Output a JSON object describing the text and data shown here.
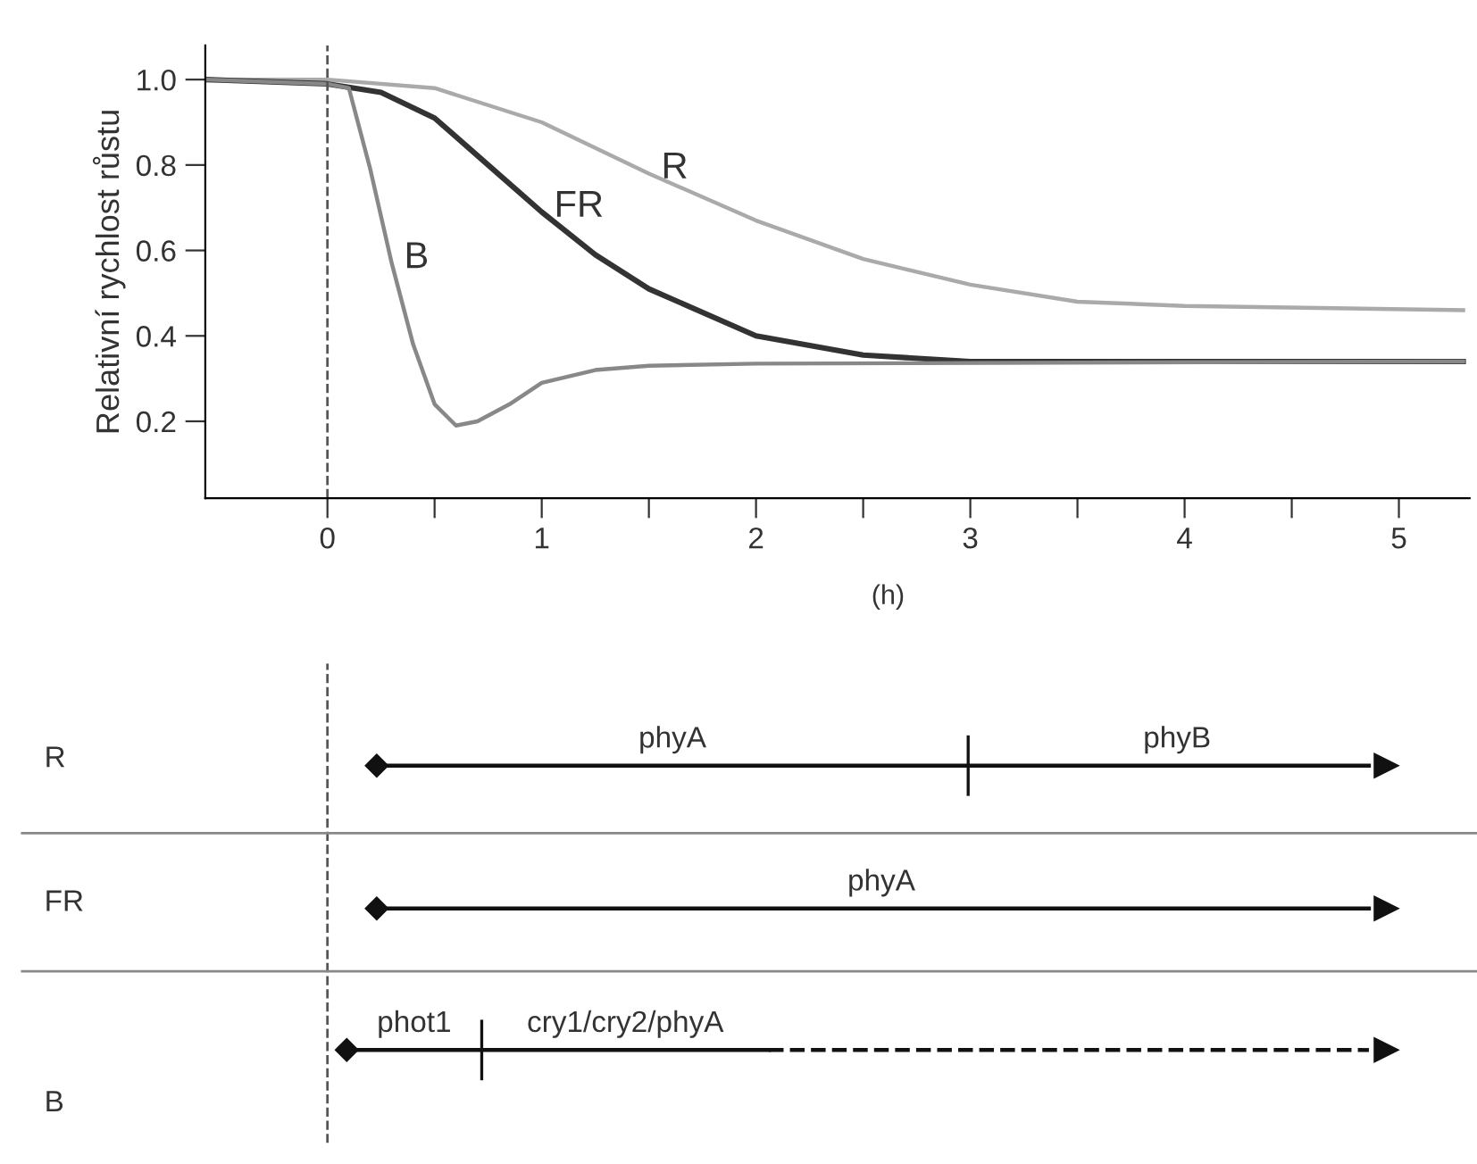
{
  "chart_data": [
    {
      "type": "line",
      "xlabel": "(h)",
      "ylabel": "Relativní rychlost růstu",
      "xlim": [
        -0.57,
        5.33
      ],
      "ylim": [
        0.02,
        1.08
      ],
      "xticks": [
        0,
        {
          "value": 0.5,
          "label": null
        },
        1,
        {
          "value": 1.5,
          "label": null
        },
        2,
        {
          "value": 2.5,
          "label": null
        },
        3,
        {
          "value": 3.5,
          "label": null
        },
        4,
        {
          "value": 4.5,
          "label": null
        },
        5
      ],
      "yticks": [
        0.2,
        0.4,
        0.6,
        0.8,
        {
          "value": 1,
          "label": "1.0"
        }
      ],
      "grid": false,
      "legend": false,
      "marker": "none",
      "line_style": "solid",
      "ref_lines": [
        {
          "axis": "x",
          "value": 0,
          "line_style": "dashed",
          "color": "#555555"
        }
      ],
      "series": [
        {
          "name": "R",
          "color": "#aaaaaa",
          "x": [
            -0.57,
            0,
            0.5,
            1.0,
            1.5,
            2.0,
            2.5,
            3.0,
            3.5,
            4.0,
            5.3
          ],
          "values": [
            1.0,
            1.0,
            0.98,
            0.9,
            0.78,
            0.67,
            0.58,
            0.52,
            0.48,
            0.47,
            0.46
          ]
        },
        {
          "name": "FR",
          "color": "#333333",
          "x": [
            -0.57,
            0,
            0.25,
            0.5,
            0.75,
            1.0,
            1.25,
            1.5,
            2.0,
            2.5,
            3.0,
            5.3
          ],
          "values": [
            1.0,
            0.99,
            0.97,
            0.91,
            0.8,
            0.69,
            0.59,
            0.51,
            0.4,
            0.355,
            0.34,
            0.34
          ]
        },
        {
          "name": "B",
          "color": "#888888",
          "x": [
            -0.57,
            0,
            0.1,
            0.2,
            0.3,
            0.4,
            0.5,
            0.6,
            0.7,
            0.85,
            1.0,
            1.25,
            1.5,
            2.0,
            5.3
          ],
          "values": [
            1.0,
            0.99,
            0.98,
            0.79,
            0.57,
            0.38,
            0.24,
            0.19,
            0.2,
            0.24,
            0.29,
            0.32,
            0.33,
            0.335,
            0.34
          ]
        }
      ]
    },
    {
      "type": "other",
      "categories": [
        "R",
        "FR",
        "B"
      ],
      "annotations": [
        "phyA",
        "phyB",
        "phyA",
        "phot1",
        "cry1/cry2/phyA"
      ]
    }
  ]
}
